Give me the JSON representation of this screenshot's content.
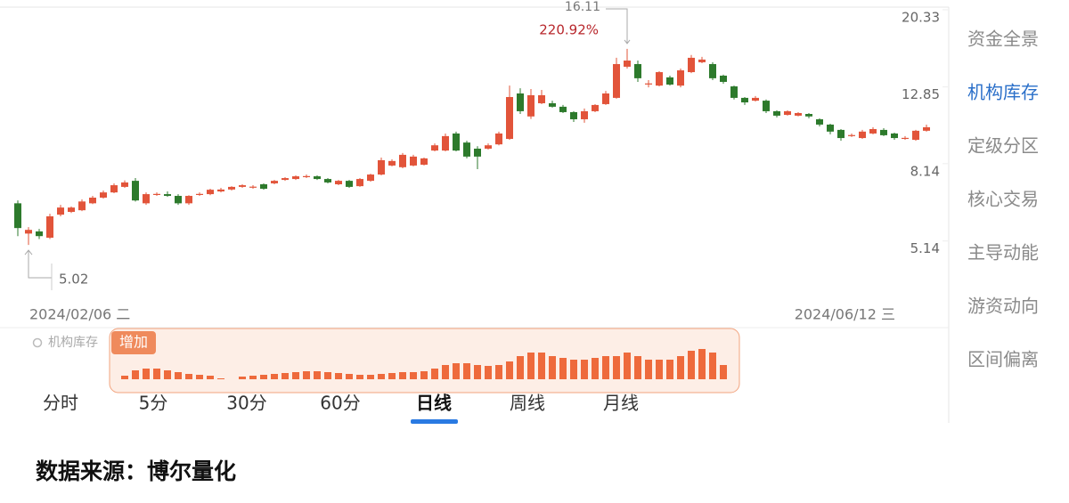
{
  "chart_data": [
    {
      "type": "candlestick",
      "log_scale": true,
      "ylim": [
        3.56,
        20.33
      ],
      "yticks": [
        20.33,
        12.85,
        8.14,
        5.14
      ],
      "up_color": "#e2543a",
      "down_color": "#2d7a2c",
      "x_labels": [
        "2024/02/06 二",
        "2024/06/12 三"
      ],
      "annotations": {
        "high_change": "220.92%"
      },
      "candles": [
        [
          6.43,
          6.54,
          5.29,
          5.55
        ],
        [
          5.37,
          5.58,
          5.02,
          5.49
        ],
        [
          5.44,
          5.52,
          5.2,
          5.29
        ],
        [
          5.24,
          6.04,
          5.2,
          5.95
        ],
        [
          6.01,
          6.37,
          5.95,
          6.27
        ],
        [
          6.11,
          6.31,
          6.07,
          6.27
        ],
        [
          6.17,
          6.58,
          6.14,
          6.5
        ],
        [
          6.43,
          6.72,
          6.4,
          6.65
        ],
        [
          6.65,
          6.94,
          6.61,
          6.86
        ],
        [
          6.86,
          7.24,
          6.83,
          7.16
        ],
        [
          7.09,
          7.37,
          7.05,
          7.28
        ],
        [
          7.35,
          7.47,
          6.5,
          6.54
        ],
        [
          6.43,
          6.86,
          6.37,
          6.79
        ],
        [
          6.79,
          6.86,
          6.72,
          6.8
        ],
        [
          6.79,
          6.9,
          6.68,
          6.72
        ],
        [
          6.72,
          6.79,
          6.37,
          6.43
        ],
        [
          6.43,
          6.75,
          6.37,
          6.72
        ],
        [
          6.79,
          6.86,
          6.72,
          6.8
        ],
        [
          6.79,
          7.01,
          6.75,
          6.97
        ],
        [
          6.9,
          7.05,
          6.86,
          6.98
        ],
        [
          6.98,
          7.12,
          6.94,
          7.09
        ],
        [
          7.09,
          7.2,
          7.05,
          7.16
        ],
        [
          7.09,
          7.16,
          7.01,
          7.1
        ],
        [
          7.2,
          7.24,
          6.97,
          7.01
        ],
        [
          7.24,
          7.39,
          7.2,
          7.35
        ],
        [
          7.39,
          7.51,
          7.35,
          7.47
        ],
        [
          7.43,
          7.59,
          7.39,
          7.55
        ],
        [
          7.55,
          7.63,
          7.47,
          7.56
        ],
        [
          7.55,
          7.59,
          7.39,
          7.43
        ],
        [
          7.43,
          7.47,
          7.24,
          7.28
        ],
        [
          7.2,
          7.39,
          7.16,
          7.35
        ],
        [
          7.35,
          7.39,
          7.05,
          7.09
        ],
        [
          7.12,
          7.47,
          7.09,
          7.43
        ],
        [
          7.35,
          7.67,
          7.31,
          7.63
        ],
        [
          7.63,
          8.44,
          7.59,
          8.31
        ],
        [
          8.05,
          8.35,
          8.01,
          8.27
        ],
        [
          7.97,
          8.67,
          7.92,
          8.58
        ],
        [
          8.05,
          8.58,
          8.01,
          8.49
        ],
        [
          8.09,
          8.44,
          8.05,
          8.4
        ],
        [
          8.8,
          9.18,
          8.76,
          9.08
        ],
        [
          8.8,
          9.74,
          8.76,
          9.59
        ],
        [
          9.74,
          9.85,
          8.76,
          8.8
        ],
        [
          9.23,
          9.33,
          8.4,
          8.49
        ],
        [
          8.9,
          9.03,
          7.88,
          8.49
        ],
        [
          8.9,
          9.18,
          8.85,
          9.08
        ],
        [
          9.13,
          9.85,
          9.08,
          9.74
        ],
        [
          9.43,
          12.95,
          9.38,
          12.1
        ],
        [
          12.36,
          12.75,
          10.94,
          11.12
        ],
        [
          10.78,
          12.69,
          10.62,
          12.23
        ],
        [
          11.66,
          12.62,
          11.6,
          12.23
        ],
        [
          11.66,
          11.84,
          11.36,
          11.42
        ],
        [
          11.42,
          11.54,
          11.0,
          11.06
        ],
        [
          11.06,
          11.12,
          10.43,
          10.6
        ],
        [
          10.6,
          11.3,
          10.38,
          11.12
        ],
        [
          11.12,
          11.6,
          11.06,
          11.54
        ],
        [
          11.6,
          12.55,
          11.54,
          12.36
        ],
        [
          12.04,
          15.28,
          11.98,
          14.72
        ],
        [
          14.49,
          16.11,
          14.33,
          15.03
        ],
        [
          14.72,
          15.03,
          13.24,
          13.53
        ],
        [
          13.1,
          13.38,
          12.82,
          13.12
        ],
        [
          12.95,
          14.11,
          12.89,
          14.03
        ],
        [
          13.6,
          13.74,
          12.95,
          13.03
        ],
        [
          12.95,
          14.33,
          12.82,
          14.18
        ],
        [
          14.03,
          15.54,
          13.95,
          15.28
        ],
        [
          14.88,
          15.36,
          14.8,
          15.12
        ],
        [
          14.72,
          14.88,
          13.38,
          13.53
        ],
        [
          13.74,
          13.82,
          13.1,
          13.24
        ],
        [
          12.89,
          12.95,
          11.92,
          12.04
        ],
        [
          12.04,
          12.1,
          11.54,
          11.72
        ],
        [
          11.84,
          12.17,
          11.78,
          12.04
        ],
        [
          11.84,
          11.92,
          11.0,
          11.12
        ],
        [
          11.12,
          11.18,
          10.72,
          10.83
        ],
        [
          10.88,
          11.18,
          10.83,
          11.12
        ],
        [
          10.83,
          11.06,
          10.78,
          11.0
        ],
        [
          10.94,
          11.0,
          10.66,
          10.78
        ],
        [
          10.6,
          10.66,
          10.16,
          10.27
        ],
        [
          10.27,
          10.32,
          9.69,
          9.85
        ],
        [
          9.95,
          10.0,
          9.33,
          9.48
        ],
        [
          9.64,
          9.74,
          9.54,
          9.65
        ],
        [
          9.48,
          9.95,
          9.43,
          9.85
        ],
        [
          9.74,
          10.11,
          9.69,
          10.0
        ],
        [
          9.95,
          10.05,
          9.59,
          9.64
        ],
        [
          9.74,
          9.79,
          9.38,
          9.48
        ],
        [
          9.48,
          9.59,
          9.38,
          9.49
        ],
        [
          9.38,
          9.95,
          9.33,
          9.9
        ],
        [
          9.9,
          10.27,
          9.85,
          10.11
        ]
      ]
    },
    {
      "type": "bar",
      "title": "机构库存",
      "label": "增加",
      "color": "#ee6a3c",
      "ylim": [
        0,
        40
      ],
      "values": [
        4,
        10,
        12,
        12,
        10,
        8,
        6,
        5,
        4,
        1,
        0,
        3,
        4,
        5,
        6,
        7,
        8,
        9,
        9,
        8,
        7,
        6,
        5,
        5,
        6,
        7,
        8,
        8,
        9,
        12,
        16,
        18,
        18,
        16,
        15,
        16,
        20,
        26,
        30,
        30,
        26,
        24,
        22,
        22,
        24,
        26,
        26,
        30,
        26,
        22,
        22,
        22,
        26,
        32,
        34,
        30,
        16
      ]
    }
  ],
  "sidebar": {
    "tabs": [
      "资金全景",
      "机构库存",
      "定级分区",
      "核心交易",
      "主导动能",
      "游资动向",
      "区间偏离"
    ],
    "active": 1
  },
  "period_tabs": {
    "tabs": [
      "分时",
      "5分",
      "30分",
      "60分",
      "日线",
      "周线",
      "月线"
    ],
    "active": 4
  },
  "footer": {
    "source": "数据来源：博尔量化"
  }
}
